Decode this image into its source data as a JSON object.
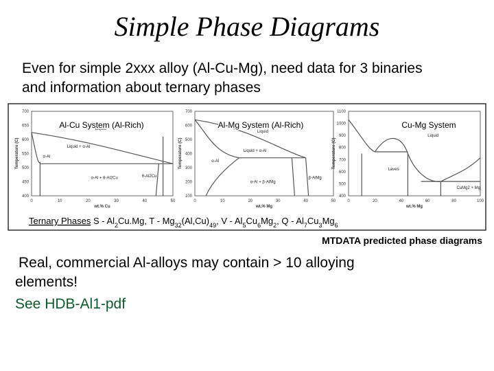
{
  "header": {
    "title": "Simple Phase Diagrams"
  },
  "intro": {
    "lines": [
      "Even for simple 2xxx alloy (Al-Cu-Mg), need data for 3 binaries",
      "and information about ternary phases"
    ]
  },
  "panels": [
    {
      "title": "Al-Cu System (Al-Rich)",
      "y_title": "Temperature (C)",
      "x_title": "wt.% Cu",
      "yticks": [
        "700",
        "650",
        "600",
        "550",
        "500",
        "450",
        "400"
      ],
      "xticks": [
        "0",
        "10",
        "20",
        "30",
        "40",
        "50"
      ],
      "regions": [
        "Liquid",
        "Liquid + α-Al",
        "α-Al",
        "α-Al + θ-Al2Cu",
        "θ-Al2Cu"
      ]
    },
    {
      "title": "Al-Mg System (Al-Rich)",
      "y_title": "Temperature (C)",
      "x_title": "wt.% Mg",
      "yticks": [
        "700",
        "600",
        "500",
        "400",
        "300",
        "200",
        "100"
      ],
      "xticks": [
        "0",
        "10",
        "20",
        "30",
        "40",
        "50"
      ],
      "regions": [
        "Liquid",
        "Liquid + α-Al",
        "α-Al",
        "α-Al + β-AlMg",
        "β-AlMg"
      ]
    },
    {
      "title": "Cu-Mg System",
      "y_title": "Temperature (C)",
      "x_title": "wt.% Mg",
      "yticks": [
        "1100",
        "1000",
        "900",
        "800",
        "700",
        "600",
        "500",
        "400"
      ],
      "xticks": [
        "0",
        "20",
        "40",
        "60",
        "80",
        "100"
      ],
      "regions": [
        "Liquid",
        "Laves",
        "CuMg2 + Mg"
      ]
    }
  ],
  "ternary": {
    "label": "Ternary Phases",
    "parts": [
      {
        "text": "S - Al"
      },
      {
        "sub": "2"
      },
      {
        "text": "Cu.Mg, T - Mg"
      },
      {
        "sub": "32"
      },
      {
        "text": "(Al,Cu)"
      },
      {
        "sub": "49"
      },
      {
        "text": ", V - Al"
      },
      {
        "sub": "5"
      },
      {
        "text": "Cu"
      },
      {
        "sub": "6"
      },
      {
        "text": "Mg"
      },
      {
        "sub": "2"
      },
      {
        "text": ", Q - Al"
      },
      {
        "sub": "7"
      },
      {
        "text": "Cu"
      },
      {
        "sub": "3"
      },
      {
        "text": "Mg"
      },
      {
        "sub": "6"
      }
    ]
  },
  "caption": "MTDATA predicted phase diagrams",
  "body": {
    "lines": [
      "Real, commercial Al-alloys may contain > 10 alloying",
      "elements!"
    ]
  },
  "reference": "See HDB-Al1-pdf"
}
